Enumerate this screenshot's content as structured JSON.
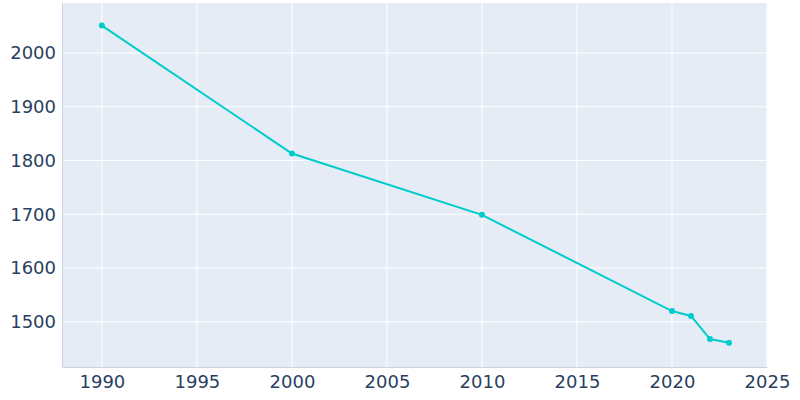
{
  "chart_data": {
    "type": "line",
    "x": [
      1990,
      2000,
      2010,
      2020,
      2021,
      2022,
      2023
    ],
    "values": [
      2051,
      1813,
      1699,
      1520,
      1511,
      1468,
      1461
    ],
    "color": "#00cccc",
    "xlim": [
      1987.9,
      2025
    ],
    "ylim": [
      1416,
      2093
    ],
    "xticks": [
      1990,
      1995,
      2000,
      2005,
      2010,
      2015,
      2020,
      2025
    ],
    "yticks": [
      1500,
      1600,
      1700,
      1800,
      1900,
      2000
    ],
    "grid": true,
    "marker": "circle"
  }
}
